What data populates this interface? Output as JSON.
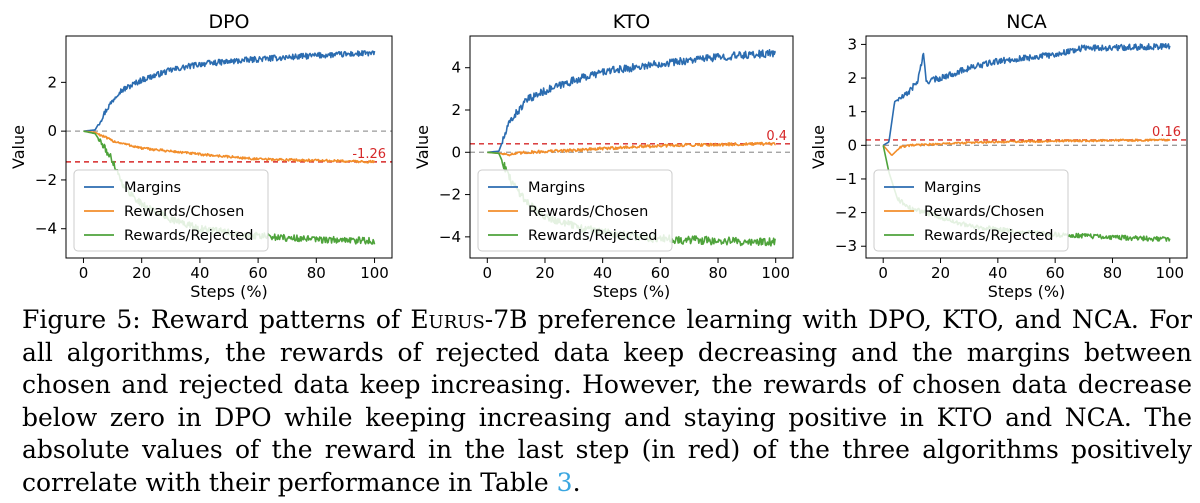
{
  "colors": {
    "margins": "#2b6cb0",
    "chosen": "#f28e2b",
    "rejected": "#4ea33b",
    "ref_red": "#d62728",
    "zero_gray": "#9a9a9a",
    "link": "#3aa6e0"
  },
  "chart_data": [
    {
      "type": "line",
      "title": "DPO",
      "xlabel": "Steps (%)",
      "ylabel": "Value",
      "xlim": [
        -6,
        106
      ],
      "ylim": [
        -5.2,
        3.9
      ],
      "xticks": [
        0,
        20,
        40,
        60,
        80,
        100
      ],
      "yticks": [
        -4,
        -2,
        0,
        2
      ],
      "legend": "lower-left",
      "ref_line": {
        "value": -1.26,
        "label": "-1.26"
      },
      "series": [
        {
          "name": "Margins",
          "key": "margins",
          "anchors": [
            [
              0,
              0
            ],
            [
              4,
              0.05
            ],
            [
              8,
              0.9
            ],
            [
              12,
              1.6
            ],
            [
              20,
              2.1
            ],
            [
              30,
              2.5
            ],
            [
              40,
              2.75
            ],
            [
              60,
              2.95
            ],
            [
              80,
              3.1
            ],
            [
              100,
              3.2
            ]
          ],
          "noise": 0.12
        },
        {
          "name": "Rewards/Chosen",
          "key": "chosen",
          "anchors": [
            [
              0,
              0
            ],
            [
              4,
              -0.05
            ],
            [
              10,
              -0.4
            ],
            [
              20,
              -0.7
            ],
            [
              40,
              -0.95
            ],
            [
              60,
              -1.15
            ],
            [
              80,
              -1.2
            ],
            [
              100,
              -1.26
            ]
          ],
          "noise": 0.05
        },
        {
          "name": "Rewards/Rejected",
          "key": "rejected",
          "anchors": [
            [
              0,
              0
            ],
            [
              4,
              -0.1
            ],
            [
              10,
              -1.2
            ],
            [
              14,
              -2.3
            ],
            [
              20,
              -3.0
            ],
            [
              30,
              -3.6
            ],
            [
              40,
              -4.0
            ],
            [
              60,
              -4.3
            ],
            [
              80,
              -4.45
            ],
            [
              100,
              -4.5
            ]
          ],
          "noise": 0.14
        }
      ]
    },
    {
      "type": "line",
      "title": "KTO",
      "xlabel": "Steps (%)",
      "ylabel": "Value",
      "xlim": [
        -6,
        106
      ],
      "ylim": [
        -5.0,
        5.5
      ],
      "xticks": [
        0,
        20,
        40,
        60,
        80,
        100
      ],
      "yticks": [
        -4,
        -2,
        0,
        2,
        4
      ],
      "legend": "lower-left",
      "ref_line": {
        "value": 0.4,
        "label": "0.4"
      },
      "series": [
        {
          "name": "Margins",
          "key": "margins",
          "anchors": [
            [
              0,
              0
            ],
            [
              4,
              0.05
            ],
            [
              8,
              1.5
            ],
            [
              14,
              2.5
            ],
            [
              20,
              2.9
            ],
            [
              30,
              3.4
            ],
            [
              40,
              3.8
            ],
            [
              60,
              4.2
            ],
            [
              80,
              4.5
            ],
            [
              100,
              4.7
            ]
          ],
          "noise": 0.18
        },
        {
          "name": "Rewards/Chosen",
          "key": "chosen",
          "anchors": [
            [
              0,
              0
            ],
            [
              4,
              -0.05
            ],
            [
              8,
              -0.1
            ],
            [
              14,
              0.0
            ],
            [
              30,
              0.1
            ],
            [
              50,
              0.25
            ],
            [
              70,
              0.35
            ],
            [
              100,
              0.4
            ]
          ],
          "noise": 0.07
        },
        {
          "name": "Rewards/Rejected",
          "key": "rejected",
          "anchors": [
            [
              0,
              0
            ],
            [
              4,
              -0.05
            ],
            [
              8,
              -1.3
            ],
            [
              14,
              -2.4
            ],
            [
              20,
              -3.0
            ],
            [
              30,
              -3.5
            ],
            [
              40,
              -3.8
            ],
            [
              60,
              -4.1
            ],
            [
              80,
              -4.2
            ],
            [
              100,
              -4.25
            ]
          ],
          "noise": 0.2
        }
      ]
    },
    {
      "type": "line",
      "title": "NCA",
      "xlabel": "Steps (%)",
      "ylabel": "Value",
      "xlim": [
        -6,
        106
      ],
      "ylim": [
        -3.35,
        3.25
      ],
      "xticks": [
        0,
        20,
        40,
        60,
        80,
        100
      ],
      "yticks": [
        -3,
        -2,
        -1,
        0,
        1,
        2,
        3
      ],
      "legend": "lower-left",
      "ref_line": {
        "value": 0.16,
        "label": "0.16"
      },
      "series": [
        {
          "name": "Margins",
          "key": "margins",
          "anchors": [
            [
              0,
              0
            ],
            [
              2,
              0.1
            ],
            [
              4,
              1.3
            ],
            [
              8,
              1.5
            ],
            [
              12,
              1.9
            ],
            [
              14,
              2.7
            ],
            [
              15,
              1.9
            ],
            [
              20,
              2.0
            ],
            [
              30,
              2.3
            ],
            [
              40,
              2.5
            ],
            [
              60,
              2.7
            ],
            [
              70,
              2.9
            ],
            [
              80,
              2.9
            ],
            [
              100,
              2.95
            ]
          ],
          "noise": 0.09
        },
        {
          "name": "Rewards/Chosen",
          "key": "chosen",
          "anchors": [
            [
              0,
              0
            ],
            [
              3,
              -0.3
            ],
            [
              6,
              -0.05
            ],
            [
              10,
              0.0
            ],
            [
              30,
              0.08
            ],
            [
              60,
              0.13
            ],
            [
              100,
              0.16
            ]
          ],
          "noise": 0.03
        },
        {
          "name": "Rewards/Rejected",
          "key": "rejected",
          "anchors": [
            [
              0,
              0
            ],
            [
              2,
              -0.8
            ],
            [
              5,
              -1.6
            ],
            [
              10,
              -1.9
            ],
            [
              15,
              -2.0
            ],
            [
              30,
              -2.4
            ],
            [
              50,
              -2.6
            ],
            [
              70,
              -2.7
            ],
            [
              100,
              -2.8
            ]
          ],
          "noise": 0.07
        }
      ]
    }
  ],
  "caption": {
    "prefix": "Figure 5: Reward patterns of ",
    "model": "Eurus",
    "model_suffix": "-7B preference learning with DPO, KTO, and NCA. For all algorithms, the rewards of rejected data keep decreasing and the margins between chosen and rejected data keep increasing. However, the rewards of chosen data decrease below zero in DPO while keeping increasing and staying positive in KTO and NCA. The absolute values of the reward in the last step (in red) of the three algorithms positively correlate with their performance in Table ",
    "table_ref": "3",
    "end": "."
  }
}
